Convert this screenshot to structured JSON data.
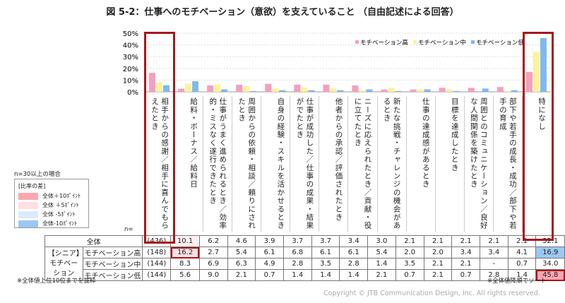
{
  "title": "図 5-2：仕事へのモチベーション（意欲）を支えていること （自由記述による回答）",
  "colors": {
    "high": "#f59fbf",
    "mid": "#fdf29a",
    "low": "#7fb8f0",
    "highlight_box": "#a8161c",
    "plus10": "#f9a6b0",
    "plus5": "#fde0e3",
    "minus5": "#dcebfb",
    "minus10": "#9cc8f5"
  },
  "legend_box": {
    "header": "n=30以上の場合",
    "title": "[比率の差]",
    "items": [
      "全体＋10ﾎﾟｲﾝﾄ",
      "全体 ＋5ﾎﾟｲﾝﾄ",
      "全体 -5ﾎﾟｲﾝﾄ",
      "全体-10ﾎﾟｲﾝﾄ"
    ]
  },
  "chart_data": {
    "type": "bar",
    "ylim": [
      0,
      50
    ],
    "yticks": [
      "0%",
      "10%",
      "20%",
      "30%",
      "40%",
      "50%"
    ],
    "grid": true,
    "legend_placement": "top-right",
    "categories": [
      "相手からの感謝／相手に喜んでもらえたとき",
      "給料・ボーナス／給料日",
      "仕事がうまく進められるとき／効率的・ミスなく遂行できたとき",
      "周囲からの依頼・相談／頼りにされたとき",
      "自身の経験・スキルを活かせるとき",
      "仕事が成功した／仕事の成果・結果がでたとき",
      "他者からの承認／評価されたとき",
      "ニーズに応えられたとき／貢献・役に立てたとき",
      "新たな挑戦・チャレンジの機会があるとき",
      "仕事の達成感があるとき",
      "目標を達成したとき",
      "周囲とのコミュニケーション／良好な人間関係を築けたとき",
      "部下や若手の成長・成功／部下や若手の育成",
      "特になし"
    ],
    "series": [
      {
        "name": "モチベーション高",
        "values": [
          16.2,
          2.7,
          5.4,
          6.1,
          6.8,
          6.1,
          6.1,
          5.4,
          2.0,
          2.0,
          3.4,
          3.4,
          4.1,
          16.9
        ]
      },
      {
        "name": "モチベーション中",
        "values": [
          8.3,
          6.9,
          6.3,
          4.9,
          2.8,
          3.5,
          2.8,
          1.4,
          3.5,
          2.1,
          2.1,
          0,
          0.7,
          34.0
        ]
      },
      {
        "name": "モチベーション低",
        "values": [
          5.6,
          9.0,
          2.1,
          0.7,
          1.4,
          1.4,
          1.4,
          2.1,
          0.7,
          2.1,
          0.7,
          2.8,
          1.4,
          45.8
        ]
      }
    ]
  },
  "table": {
    "n_label": "n=",
    "total": {
      "label": "全体",
      "n": "(436)",
      "values": [
        "10.1",
        "6.2",
        "4.6",
        "3.9",
        "3.7",
        "3.7",
        "3.4",
        "3.0",
        "2.1",
        "2.1",
        "2.1",
        "2.1",
        "2.1",
        "32.1"
      ]
    },
    "group_label": "【シニア】モチベーション",
    "rows": [
      {
        "label": "モチベーション高",
        "n": "(148)",
        "values": [
          "16.2",
          "2.7",
          "5.4",
          "6.1",
          "6.8",
          "6.1",
          "6.1",
          "5.4",
          "2.0",
          "2.0",
          "3.4",
          "3.4",
          "4.1",
          "16.9"
        ]
      },
      {
        "label": "モチベーション中",
        "n": "(144)",
        "values": [
          "8.3",
          "6.9",
          "6.3",
          "4.9",
          "2.8",
          "3.5",
          "2.8",
          "1.4",
          "3.5",
          "2.1",
          "2.1",
          "-",
          "0.7",
          "34.0"
        ]
      },
      {
        "label": "モチベーション低",
        "n": "(144)",
        "values": [
          "5.6",
          "9.0",
          "2.1",
          "0.7",
          "1.4",
          "1.4",
          "1.4",
          "2.1",
          "0.7",
          "2.1",
          "0.7",
          "2.8",
          "1.4",
          "45.8"
        ]
      }
    ]
  },
  "notes": {
    "left": "※全体値上位10位までを抜粋",
    "right": "※全体値降順でソート"
  },
  "copyright": "Copyright © JTB Communication Design, Inc. All rights reserved."
}
